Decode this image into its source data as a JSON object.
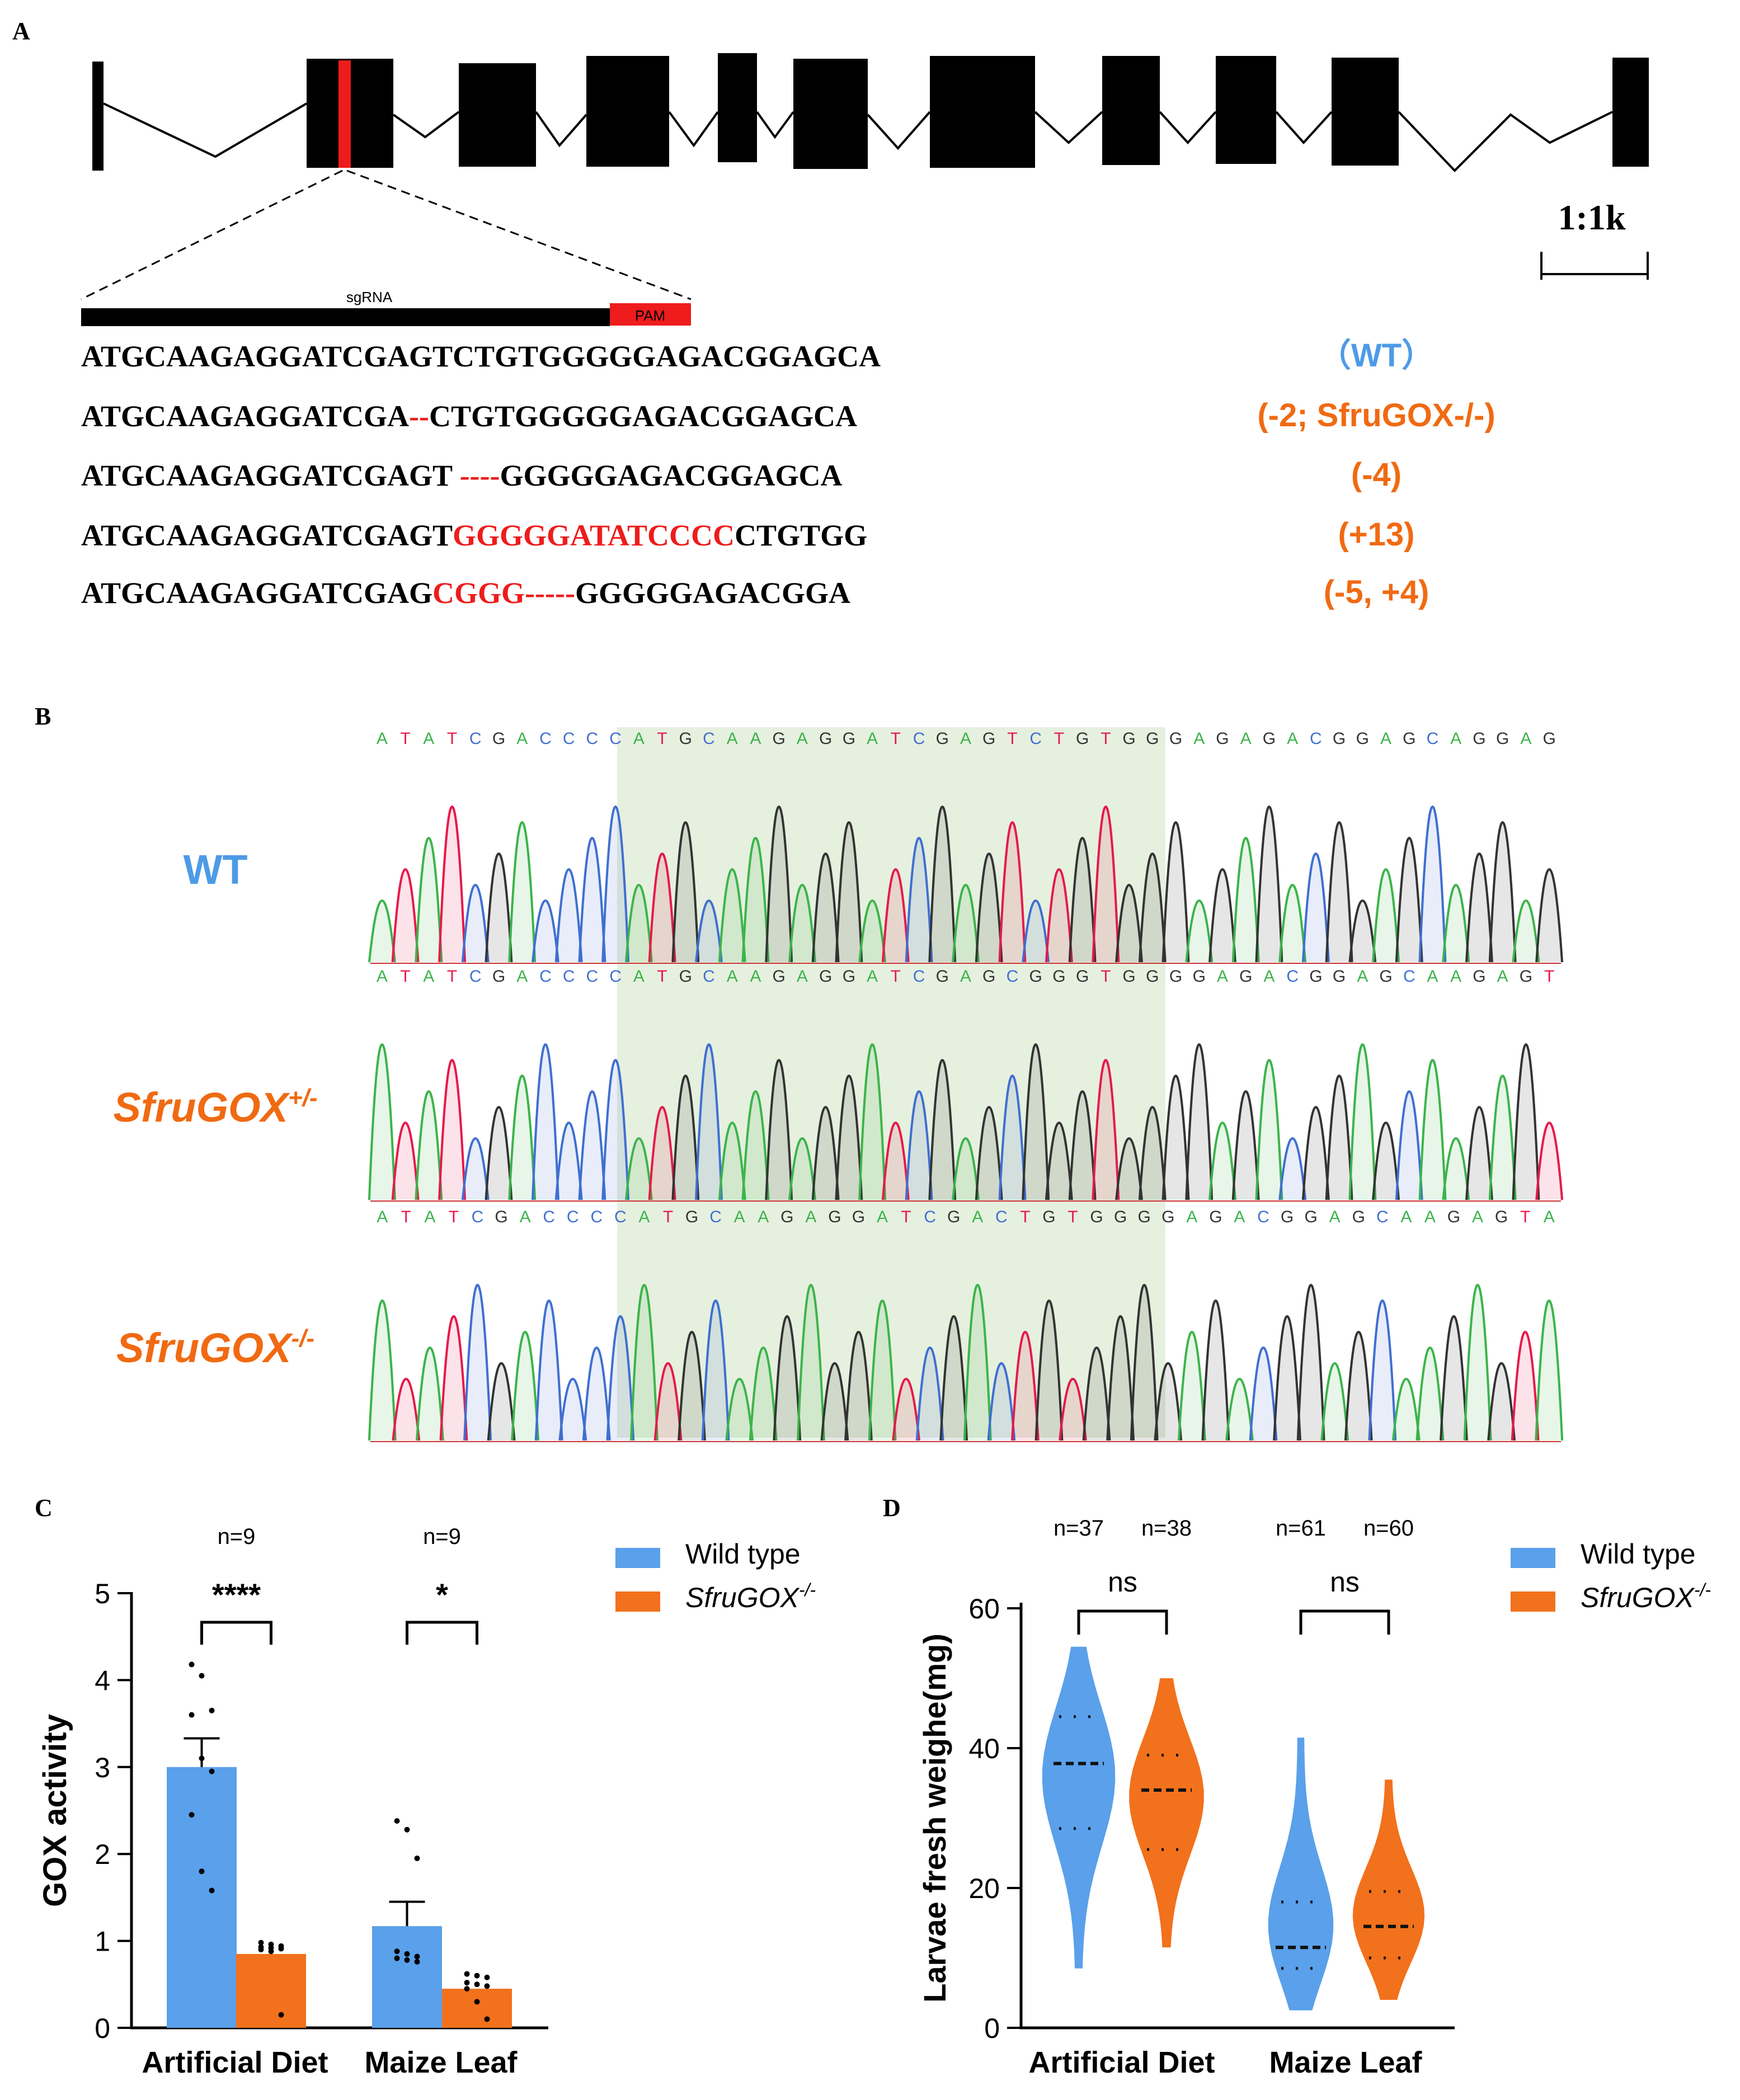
{
  "panels": {
    "a": "A",
    "b": "B",
    "c": "C",
    "d": "D"
  },
  "colors": {
    "blue": "#5AA0EA",
    "orange": "#F2711C",
    "red": "#EE1C1C",
    "label_blue": "#4D9BE6",
    "label_orange": "#F06A12"
  },
  "gene_model": {
    "scale_label": "1:1k",
    "sgrna_label": "sgRNA",
    "pam_label": "PAM"
  },
  "sequences": [
    {
      "parts": [
        {
          "text": "ATGCAAGAGGATCGAGTCTGTGGGGGAGACGGAGCA",
          "style": "normal"
        }
      ],
      "label": "（WT）",
      "label_style": "wt"
    },
    {
      "parts": [
        {
          "text": "ATGCAAGAGGATCGA",
          "style": "normal"
        },
        {
          "text": "--",
          "style": "red"
        },
        {
          "text": "CTGTGGGGGAGACGGAGCA",
          "style": "normal"
        }
      ],
      "label": "(-2; SfruGOX-/-)",
      "label_style": "mut"
    },
    {
      "parts": [
        {
          "text": "ATGCAAGAGGATCGAGT ",
          "style": "normal"
        },
        {
          "text": "----",
          "style": "red"
        },
        {
          "text": "GGGGGAGACGGAGCA",
          "style": "normal"
        }
      ],
      "label": "(-4)",
      "label_style": "mut"
    },
    {
      "parts": [
        {
          "text": "ATGCAAGAGGATCGAGT",
          "style": "normal"
        },
        {
          "text": "GGGGGATATCCCC",
          "style": "red"
        },
        {
          "text": "CTGTGG",
          "style": "normal"
        }
      ],
      "label": "(+13)",
      "label_style": "mut"
    },
    {
      "parts": [
        {
          "text": "ATGCAAGAGGATCGAG",
          "style": "normal"
        },
        {
          "text": "CGGG-----",
          "style": "red"
        },
        {
          "text": "GGGGGAGACGGA",
          "style": "normal"
        }
      ],
      "label": "(-5, +4)",
      "label_style": "mut"
    }
  ],
  "chromatograms": [
    {
      "label": "WT",
      "label_style": "wt",
      "bases": "ATATCGACCCCATGCAAGAGGATCGAGTCTGTGGGAGAGACGGAGCAGGAG"
    },
    {
      "label_main": "SfruGOX",
      "label_sup": "+/-",
      "label_style": "mut",
      "bases": "ATATCGACCCCATGCAAGAGGATCGAGCGGGTGGGGAGACGGAGCAAGAGT"
    },
    {
      "label_main": "SfruGOX",
      "label_sup": "-/-",
      "label_style": "mut",
      "bases": "ATATCGACCCCATGCAAGAGGATCGACTGTGGGGAGACGGAGCAAGAGTA"
    }
  ],
  "base_colors": {
    "A": "#3cb44b",
    "T": "#e6194b",
    "G": "#333333",
    "C": "#3f6fd1"
  },
  "chart_data": [
    {
      "type": "bar",
      "panel": "C",
      "categories": [
        "Artificial Diet",
        "Maize Leaf"
      ],
      "series": [
        {
          "name": "Wild type",
          "values": [
            3.0,
            1.17
          ],
          "sem": [
            0.33,
            0.28
          ],
          "points": [
            [
              4.18,
              4.05,
              3.65,
              3.6,
              3.1,
              2.95,
              2.45,
              1.8,
              1.58
            ],
            [
              2.38,
              2.28,
              1.95,
              0.88,
              0.85,
              0.82,
              0.8,
              0.78,
              0.76
            ]
          ]
        },
        {
          "name": "SfruGOX-/-",
          "values": [
            0.85,
            0.45
          ],
          "points": [
            [
              0.98,
              0.96,
              0.94,
              0.93,
              0.92,
              0.91,
              0.9,
              0.88,
              0.15
            ],
            [
              0.62,
              0.6,
              0.58,
              0.52,
              0.5,
              0.48,
              0.45,
              0.3,
              0.1
            ]
          ]
        }
      ],
      "legend": [
        "Wild type",
        "SfruGOX"
      ],
      "legend_sup": "-/-",
      "n_labels": [
        "n=9",
        "n=9"
      ],
      "significance": [
        "****",
        "*"
      ],
      "ylabel": "GOX activity",
      "ylim": [
        0,
        5
      ],
      "yticks": [
        0,
        1,
        2,
        3,
        4,
        5
      ]
    },
    {
      "type": "violin",
      "panel": "D",
      "categories": [
        "Artificial Diet",
        "Maize Leaf"
      ],
      "series": [
        {
          "name": "Wild type",
          "distributions": [
            {
              "min": 8.5,
              "max": 54.5,
              "median": 37.8,
              "q1": 28.5,
              "q3": 44.5
            },
            {
              "min": 2.5,
              "max": 41.5,
              "median": 11.5,
              "q1": 8.5,
              "q3": 18.0
            }
          ]
        },
        {
          "name": "SfruGOX-/-",
          "distributions": [
            {
              "min": 11.5,
              "max": 50.0,
              "median": 34.0,
              "q1": 25.5,
              "q3": 39.0
            },
            {
              "min": 4.0,
              "max": 35.5,
              "median": 14.5,
              "q1": 10.0,
              "q3": 19.5
            }
          ]
        }
      ],
      "legend": [
        "Wild type",
        "SfruGOX"
      ],
      "legend_sup": "-/-",
      "n_labels": [
        "n=37",
        "n=38",
        "n=61",
        "n=60"
      ],
      "significance": [
        "ns",
        "ns"
      ],
      "ylabel": "Larvae fresh weighe(mg)",
      "ylim": [
        0,
        60
      ],
      "yticks": [
        0,
        20,
        40,
        60
      ]
    }
  ]
}
